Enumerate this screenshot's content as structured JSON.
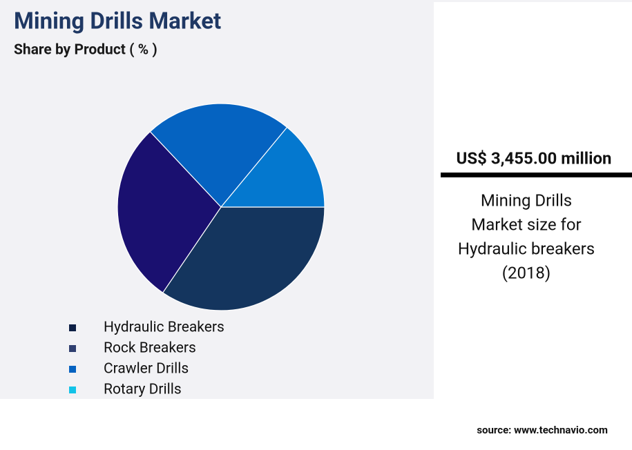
{
  "chart_data": {
    "type": "pie",
    "title": "Mining Drills Market",
    "subtitle": "Share by Product ( % )",
    "categories": [
      "Hydraulic Breakers",
      "Rock Breakers",
      "Crawler Drills",
      "Rotary Drills"
    ],
    "values": [
      34.5,
      28.5,
      23,
      14
    ],
    "colors": [
      "#14355e",
      "#1a1070",
      "#0563c1",
      "#0478cf"
    ],
    "legend_colors": [
      "#0d1f45",
      "#2f3f70",
      "#0563c1",
      "#13c3e8"
    ]
  },
  "panel": {
    "headline": "US$ 3,455.00 million",
    "caption": [
      "Mining Drills",
      "Market size for",
      "Hydraulic breakers",
      "(2018)"
    ],
    "source": "source: www.technavio.com"
  }
}
